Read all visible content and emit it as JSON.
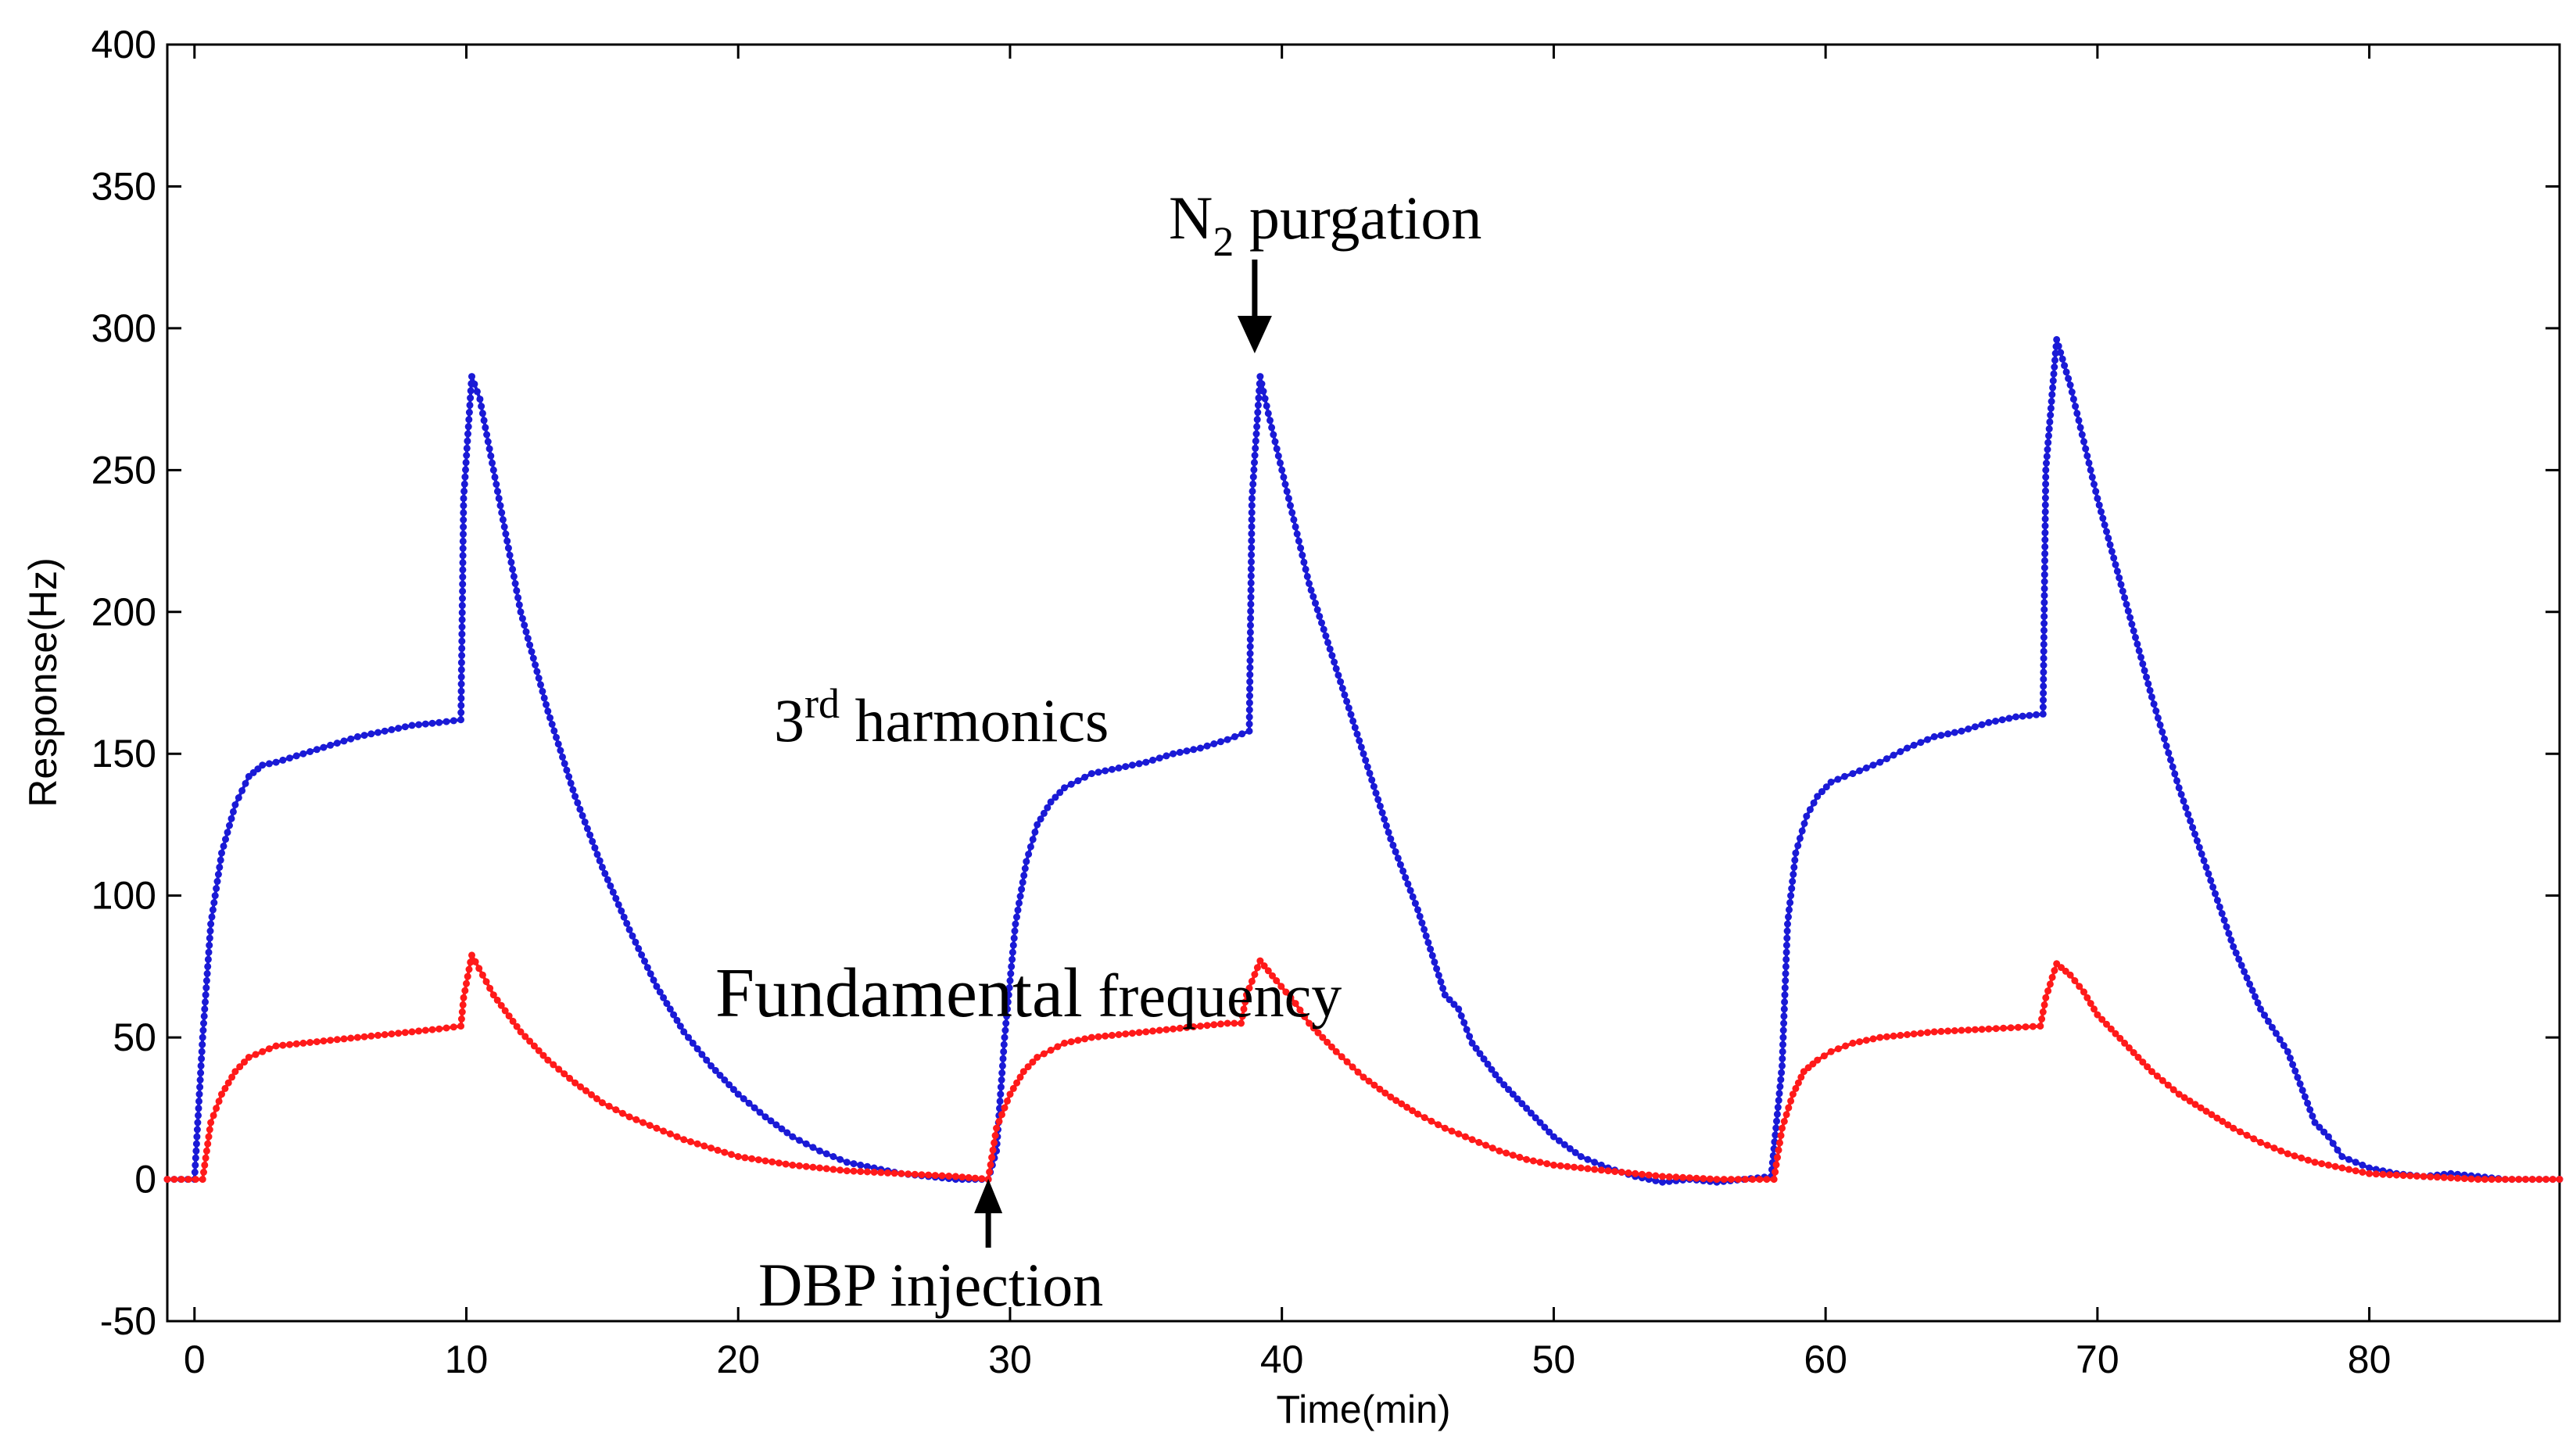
{
  "chart_data": {
    "type": "line",
    "title": "",
    "xlabel": "Time(min)",
    "ylabel": "Response(Hz)",
    "xlim": [
      -1,
      87
    ],
    "ylim": [
      -50,
      400
    ],
    "xticks": [
      0,
      10,
      20,
      30,
      40,
      50,
      60,
      70,
      80
    ],
    "yticks": [
      -50,
      0,
      50,
      100,
      150,
      200,
      250,
      300,
      350,
      400
    ],
    "grid": false,
    "series": [
      {
        "name": "3rd harmonics",
        "color": "#1a1ad6",
        "x": [
          -1,
          0,
          0.3,
          0.6,
          1.0,
          1.5,
          2.0,
          2.5,
          3,
          4,
          5,
          6,
          7,
          8,
          9,
          9.8,
          9.9,
          10.2,
          10.5,
          11,
          11.5,
          12,
          13,
          14,
          15,
          16,
          17,
          18,
          19,
          20,
          21,
          22,
          23,
          24,
          25,
          26,
          27,
          28,
          29.2,
          29.5,
          29.8,
          30.2,
          30.6,
          31.0,
          31.5,
          32,
          33,
          34,
          35,
          36,
          37,
          38,
          38.8,
          38.9,
          39.2,
          39.5,
          40,
          40.5,
          41,
          42,
          43,
          44,
          45,
          46,
          46.5,
          47,
          48,
          49,
          50,
          51,
          52,
          53,
          54,
          55,
          56,
          57,
          58,
          58.4,
          58.6,
          58.9,
          59.3,
          59.7,
          60.2,
          60.7,
          61,
          62,
          63,
          64,
          65,
          66,
          67,
          68,
          68.1,
          68.5,
          69,
          69.5,
          70,
          71,
          72,
          73,
          74,
          75,
          76,
          77,
          78,
          78.5,
          79,
          80,
          81,
          82,
          83,
          84,
          85,
          86,
          87
        ],
        "values": [
          0,
          0,
          50,
          90,
          115,
          132,
          142,
          146,
          147,
          150,
          153,
          156,
          158,
          160,
          161,
          162,
          240,
          283,
          275,
          250,
          225,
          200,
          165,
          135,
          110,
          88,
          68,
          52,
          40,
          30,
          22,
          15,
          10,
          6,
          4,
          2,
          1,
          0,
          0,
          10,
          50,
          90,
          112,
          125,
          133,
          138,
          143,
          145,
          147,
          150,
          152,
          155,
          158,
          240,
          283,
          270,
          250,
          230,
          210,
          180,
          150,
          120,
          95,
          65,
          60,
          48,
          35,
          25,
          15,
          8,
          4,
          1,
          -1,
          0,
          -1,
          0,
          1,
          40,
          90,
          115,
          128,
          135,
          140,
          142,
          143,
          147,
          152,
          156,
          158,
          161,
          163,
          164,
          250,
          296,
          280,
          260,
          240,
          205,
          170,
          138,
          110,
          82,
          60,
          45,
          20,
          15,
          8,
          4,
          2,
          1,
          2,
          1,
          0,
          0,
          0
        ]
      },
      {
        "name": "Fundamental frequency",
        "color": "#ff1a1a",
        "x": [
          -1,
          0.3,
          0.6,
          1.0,
          1.5,
          2.0,
          3,
          4,
          5,
          6,
          7,
          8,
          9,
          9.8,
          9.9,
          10.2,
          10.6,
          11,
          12,
          13,
          14,
          15,
          16,
          17,
          18,
          19,
          20,
          22,
          24,
          26,
          28,
          29.2,
          29.5,
          30,
          30.5,
          31,
          32,
          33,
          34,
          36,
          38,
          38.5,
          38.7,
          39.2,
          39.8,
          40.5,
          41,
          42,
          43,
          44,
          45,
          46,
          47,
          48,
          49,
          50,
          52,
          54,
          56,
          58.1,
          58.4,
          58.8,
          59.2,
          59.7,
          60.2,
          61,
          62,
          64,
          66,
          67.9,
          68.1,
          68.5,
          69,
          69.5,
          70,
          71,
          72,
          73,
          74,
          75,
          76,
          77,
          78,
          79,
          80,
          82,
          84,
          86,
          87
        ],
        "values": [
          0,
          0,
          20,
          30,
          38,
          43,
          47,
          48,
          49,
          50,
          51,
          52,
          53,
          54,
          64,
          79,
          72,
          65,
          52,
          42,
          34,
          27,
          22,
          18,
          14,
          11,
          8,
          5,
          3,
          2,
          1,
          0,
          18,
          30,
          38,
          43,
          48,
          50,
          51,
          53,
          55,
          55,
          65,
          77,
          70,
          62,
          55,
          45,
          36,
          29,
          23,
          18,
          14,
          10,
          7,
          5,
          3,
          1,
          0,
          0,
          18,
          30,
          38,
          42,
          45,
          48,
          50,
          52,
          53,
          54,
          64,
          76,
          72,
          66,
          58,
          48,
          38,
          30,
          24,
          18,
          13,
          9,
          6,
          4,
          2,
          1,
          0,
          0,
          0
        ]
      }
    ],
    "annotations": {
      "n2_purgation_prefix": "N",
      "n2_purgation_sub": "2",
      "n2_purgation_suffix": " purgation",
      "third_harmonics_prefix": "3",
      "third_harmonics_sup": "rd",
      "third_harmonics_suffix": " harmonics",
      "fundamental_word": "Fundamental",
      "frequency_word": " frequency",
      "dbp_injection": "DBP injection"
    },
    "arrows": [
      {
        "name": "n2-purgation-arrow",
        "x": 39,
        "direction": "down"
      },
      {
        "name": "dbp-injection-arrow",
        "x": 29.2,
        "direction": "up"
      }
    ]
  }
}
